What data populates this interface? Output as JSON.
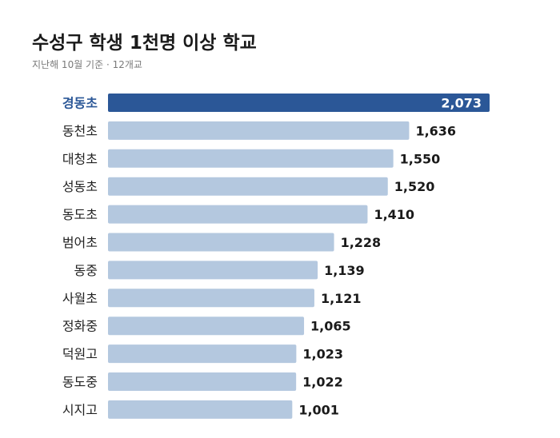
{
  "header": {
    "title": "수성구 학생 1천명 이상 학교",
    "subtitle": "지난해 10월 기준  ·  12개교"
  },
  "colors": {
    "highlight_bar": "#2b5797",
    "bar": "#b4c8df",
    "highlight_label": "#2b5797"
  },
  "chart_data": {
    "type": "bar",
    "orientation": "horizontal",
    "title": "수성구 학생 1천명 이상 학교",
    "subtitle": "지난해 10월 기준  ·  12개교",
    "categories": [
      "경동초",
      "동천초",
      "대청초",
      "성동초",
      "동도초",
      "범어초",
      "동중",
      "사월초",
      "정화중",
      "덕원고",
      "동도중",
      "시지고"
    ],
    "values": [
      2073,
      1636,
      1550,
      1520,
      1410,
      1228,
      1139,
      1121,
      1065,
      1023,
      1022,
      1001
    ],
    "value_labels": [
      "2,073",
      "1,636",
      "1,550",
      "1,520",
      "1,410",
      "1,228",
      "1,139",
      "1,121",
      "1,065",
      "1,023",
      "1,022",
      "1,001"
    ],
    "highlight_index": 0,
    "xlim": [
      0,
      2073
    ],
    "grid": false,
    "legend": "none"
  }
}
